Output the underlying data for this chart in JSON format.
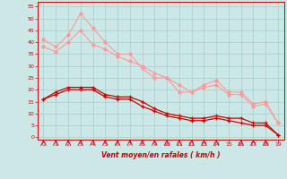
{
  "x": [
    0,
    1,
    2,
    3,
    4,
    5,
    6,
    7,
    8,
    9,
    10,
    11,
    12,
    13,
    14,
    15,
    16,
    17,
    18,
    19
  ],
  "line1": [
    41,
    38,
    43,
    52,
    46,
    40,
    35,
    35,
    29,
    25,
    25,
    19,
    19,
    22,
    24,
    19,
    19,
    14,
    15,
    6
  ],
  "line2": [
    38,
    36,
    40,
    45,
    39,
    37,
    34,
    32,
    30,
    27,
    25,
    22,
    19,
    21,
    22,
    18,
    18,
    13,
    14,
    6
  ],
  "line3": [
    16,
    19,
    21,
    21,
    21,
    18,
    17,
    17,
    15,
    12,
    10,
    9,
    8,
    8,
    9,
    8,
    8,
    6,
    6,
    1
  ],
  "line4": [
    16,
    18,
    20,
    20,
    20,
    17,
    16,
    16,
    13,
    11,
    9,
    8,
    7,
    7,
    8,
    7,
    6,
    5,
    5,
    1
  ],
  "background_color": "#cce8e6",
  "grid_color": "#aaccca",
  "line1_color": "#ff9999",
  "line2_color": "#ff9999",
  "line3_color": "#cc0000",
  "line4_color": "#cc0000",
  "xlabel": "Vent moyen/en rafales ( km/h )",
  "ylabel_ticks": [
    0,
    5,
    10,
    15,
    20,
    25,
    30,
    35,
    40,
    45,
    50,
    55
  ],
  "xlabel_ticks": [
    0,
    1,
    2,
    3,
    4,
    5,
    6,
    7,
    8,
    9,
    10,
    11,
    12,
    13,
    14,
    15,
    16,
    17,
    18,
    19
  ],
  "ylim": [
    -1,
    57
  ],
  "xlim": [
    -0.5,
    19.5
  ]
}
